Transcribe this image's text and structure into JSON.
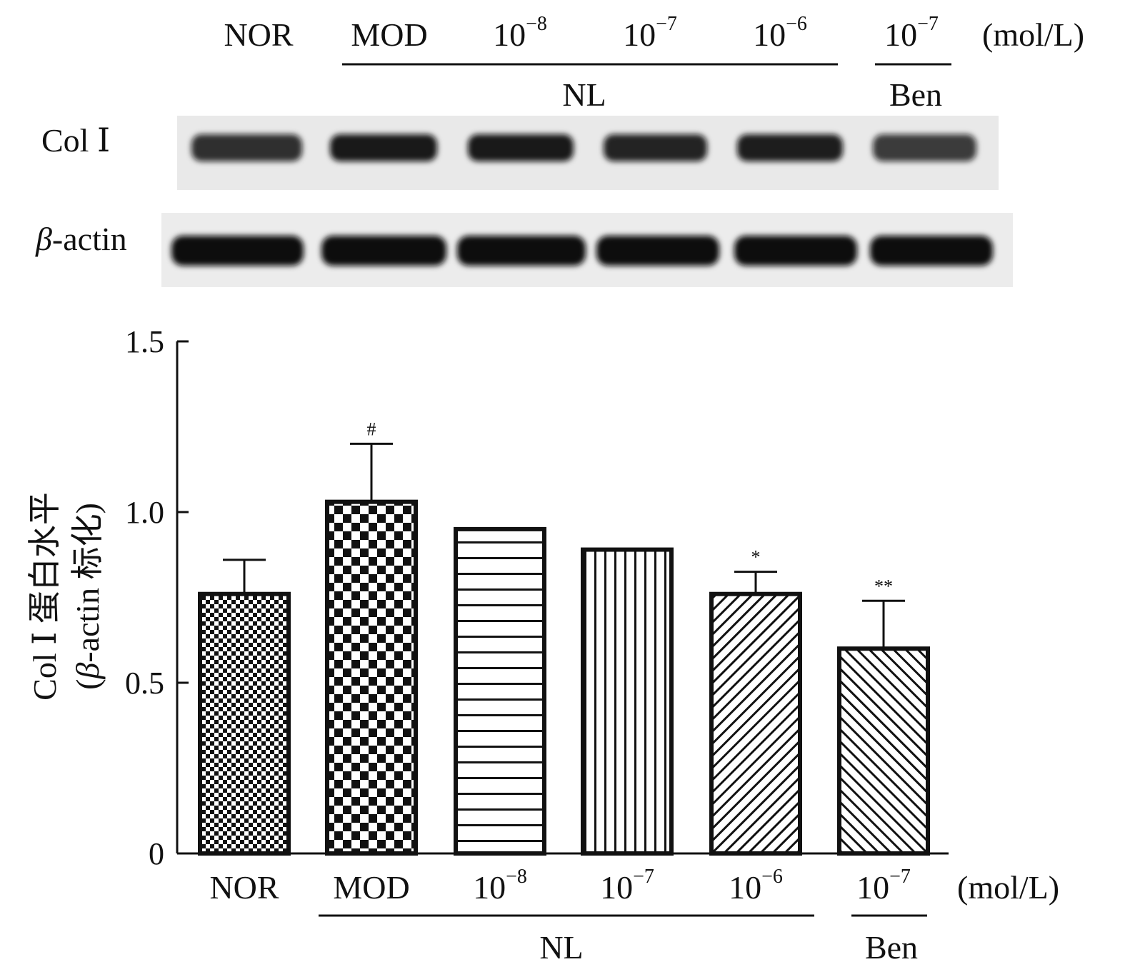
{
  "blot": {
    "header": {
      "groups": [
        "NOR",
        "MOD",
        "10",
        "10",
        "10",
        "10"
      ],
      "exponents": [
        "",
        "",
        "−8",
        "−7",
        "−6",
        "−7"
      ],
      "unit": "(mol/L)",
      "bracket_labels": [
        "NL",
        "Ben"
      ]
    },
    "rows": [
      {
        "label": "Col Ⅰ",
        "intensity": [
          0.85,
          0.95,
          0.95,
          0.9,
          0.93,
          0.8
        ]
      },
      {
        "label_greek": "β",
        "label_rest": "-actin",
        "intensity": [
          1,
          1,
          1,
          1,
          1,
          1
        ]
      }
    ]
  },
  "chart_data": {
    "type": "bar",
    "categories": [
      "NOR",
      "MOD",
      "10",
      "10",
      "10",
      "10"
    ],
    "category_exponents": [
      "",
      "",
      "−8",
      "−7",
      "−6",
      "−7"
    ],
    "values": [
      0.76,
      1.03,
      0.95,
      0.89,
      0.76,
      0.6
    ],
    "errors": [
      0.1,
      0.17,
      0.005,
      0.005,
      0.065,
      0.14
    ],
    "significance": [
      "",
      "#",
      "",
      "",
      "*",
      "**"
    ],
    "patterns": [
      "checker-small",
      "checker-large",
      "horizontal-lines",
      "vertical-lines",
      "diagonal-right",
      "diagonal-left"
    ],
    "unit": "(mol/L)",
    "group_labels": [
      "NL",
      "Ben"
    ],
    "ylabel_line1": "Col Ⅰ 蛋白水平",
    "ylabel_line2_greek": "β",
    "ylabel_line2_rest": "-actin 标化)",
    "ylabel_line2_open": "(",
    "ylim": [
      0,
      1.5
    ],
    "yticks": [
      "0",
      "0.5",
      "1.0",
      "1.5"
    ],
    "ytick_values": [
      0,
      0.5,
      1.0,
      1.5
    ],
    "grid": false
  }
}
